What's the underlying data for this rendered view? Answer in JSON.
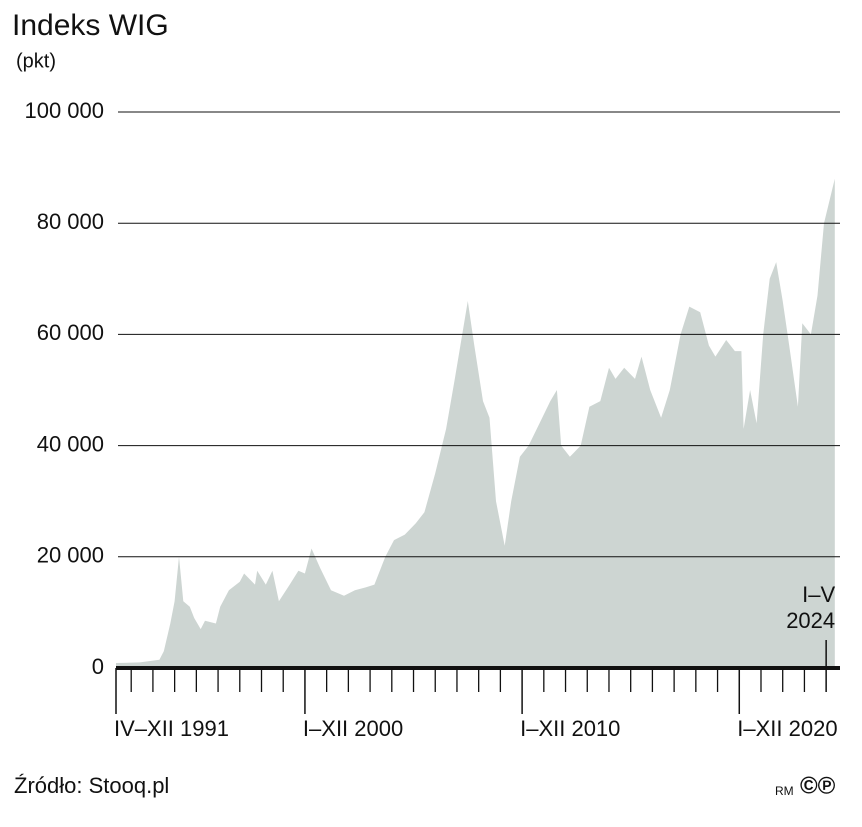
{
  "chart_data": {
    "type": "area",
    "title": "Indeks WIG",
    "subtitle": "(pkt)",
    "source": "Źródło: Stooq.pl",
    "logo": [
      "RM",
      "©℗"
    ],
    "color": "#cdd5d2",
    "x": [
      1991.3,
      1992.4,
      1993.3,
      1993.5,
      1993.8,
      1994.0,
      1994.2,
      1994.4,
      1994.7,
      1994.9,
      1995.2,
      1995.4,
      1995.9,
      1996.1,
      1996.5,
      1997.0,
      1997.2,
      1997.7,
      1997.8,
      1998.2,
      1998.5,
      1998.8,
      1999.3,
      1999.7,
      2000.0,
      2000.3,
      2000.7,
      2001.2,
      2001.8,
      2002.3,
      2002.8,
      2003.2,
      2003.7,
      2004.1,
      2004.6,
      2005.1,
      2005.5,
      2006.0,
      2006.5,
      2006.9,
      2007.2,
      2007.5,
      2007.8,
      2008.2,
      2008.5,
      2008.8,
      2009.2,
      2009.5,
      2009.9,
      2010.3,
      2010.8,
      2011.3,
      2011.6,
      2011.8,
      2012.2,
      2012.7,
      2013.1,
      2013.6,
      2014.0,
      2014.3,
      2014.7,
      2015.2,
      2015.5,
      2015.9,
      2016.4,
      2016.8,
      2017.3,
      2017.7,
      2018.2,
      2018.6,
      2018.9,
      2019.4,
      2019.8,
      2020.1,
      2020.2,
      2020.5,
      2020.8,
      2021.1,
      2021.4,
      2021.7,
      2022.0,
      2022.3,
      2022.7,
      2022.9,
      2023.3,
      2023.6,
      2023.9,
      2024.4
    ],
    "values": [
      900,
      1000,
      1500,
      3000,
      8000,
      12000,
      20000,
      12000,
      11000,
      9000,
      7000,
      8500,
      8000,
      11000,
      14000,
      15500,
      17000,
      15000,
      17500,
      15000,
      17500,
      12000,
      15000,
      17500,
      17000,
      21500,
      18000,
      14000,
      13000,
      14000,
      14500,
      15000,
      20000,
      23000,
      24000,
      26000,
      28000,
      35000,
      43000,
      52000,
      59000,
      66000,
      58000,
      48000,
      45000,
      30000,
      22000,
      30000,
      38000,
      40000,
      44000,
      48000,
      50000,
      40000,
      38000,
      40000,
      47000,
      48000,
      54000,
      52000,
      54000,
      52000,
      56000,
      50000,
      45000,
      50000,
      60000,
      65000,
      64000,
      58000,
      56000,
      59000,
      57000,
      57000,
      43000,
      50000,
      44000,
      60000,
      70000,
      73000,
      66000,
      58000,
      47000,
      62000,
      60000,
      67000,
      80000,
      88000
    ],
    "xlim": [
      1991.3,
      2024.5
    ],
    "ylim": [
      0,
      100000
    ],
    "yticks": [
      0,
      {
        "value": 20000,
        "label": "20 000"
      },
      {
        "value": 40000,
        "label": "40 000"
      },
      {
        "value": 60000,
        "label": "60 000"
      },
      {
        "value": 80000,
        "label": "80 000"
      },
      {
        "value": 100000,
        "label": "100 000"
      }
    ],
    "xticks": [
      {
        "value": 1991.3,
        "label": "IV–XII 1991"
      },
      {
        "value": 2000,
        "label": "I–XII 2000"
      },
      {
        "value": 2010,
        "label": "I–XII 2010"
      },
      {
        "value": 2020,
        "label": "I–XII 2020"
      }
    ],
    "minor_xticks": [
      1992,
      1993,
      1994,
      1995,
      1996,
      1997,
      1998,
      1999,
      2001,
      2002,
      2003,
      2004,
      2005,
      2006,
      2007,
      2008,
      2009,
      2011,
      2012,
      2013,
      2014,
      2015,
      2016,
      2017,
      2018,
      2019,
      2021,
      2022,
      2023
    ],
    "annotation": {
      "text": [
        "I–V",
        "2024"
      ],
      "x": 2024
    },
    "grid": true
  }
}
